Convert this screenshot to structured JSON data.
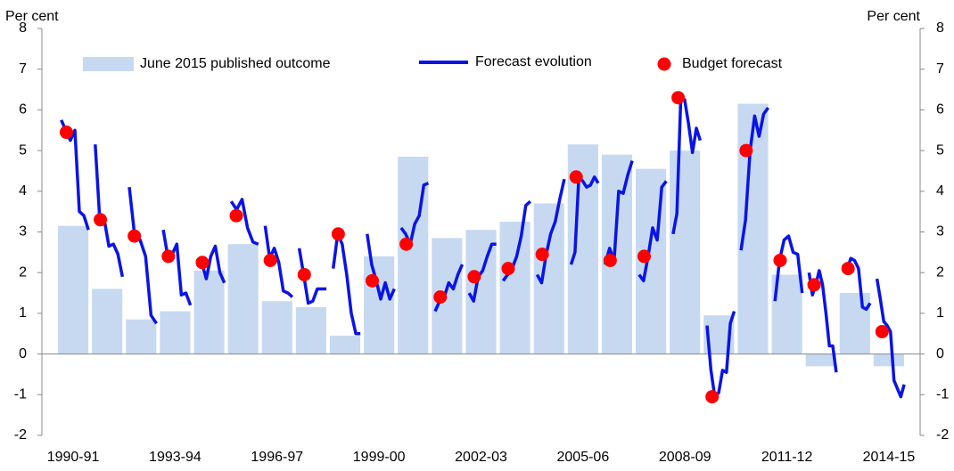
{
  "chart_data": {
    "type": "bar",
    "y_label": "Per cent",
    "y2_label": "Per cent",
    "categories": [
      "1990-91",
      null,
      null,
      "1993-94",
      null,
      null,
      "1996-97",
      null,
      null,
      "1999-00",
      null,
      null,
      "2002-03",
      null,
      null,
      "2005-06",
      null,
      null,
      "2008-09",
      null,
      null,
      "2011-12",
      null,
      null,
      "2014-15"
    ],
    "ylim": [
      -2,
      8
    ],
    "yticks": [
      -2,
      -1,
      0,
      1,
      2,
      3,
      4,
      5,
      6,
      7,
      8
    ],
    "y2lim": [
      -2,
      8
    ],
    "y2ticks": [
      -2,
      -1,
      0,
      1,
      2,
      3,
      4,
      5,
      6,
      7,
      8
    ],
    "series": [
      {
        "name": "June 2015 published outcome",
        "type": "bar",
        "color": "#c6d9f1",
        "values": [
          3.15,
          1.6,
          0.85,
          1.05,
          2.05,
          2.7,
          1.3,
          1.15,
          0.45,
          2.4,
          4.85,
          2.85,
          3.05,
          3.25,
          3.7,
          5.15,
          4.9,
          4.55,
          5.0,
          0.95,
          6.15,
          1.95,
          -0.3,
          1.5,
          -0.3
        ]
      },
      {
        "name": "Forecast evolution",
        "type": "line",
        "color": "#0a14e6",
        "values": [
          [
            5.75,
            5.5,
            5.25,
            5.5,
            3.5,
            3.4,
            3.05
          ],
          [
            5.15,
            3.3,
            3.3,
            2.65,
            2.7,
            2.45,
            1.9
          ],
          [
            4.1,
            2.9,
            2.8,
            2.4,
            0.95,
            0.75
          ],
          [
            3.05,
            2.4,
            2.45,
            2.7,
            1.45,
            1.5,
            1.2
          ],
          [
            2.35,
            2.25,
            1.85,
            2.4,
            2.65,
            2.0,
            1.75
          ],
          [
            3.75,
            3.55,
            3.8,
            3.1,
            2.75,
            2.7
          ],
          [
            3.15,
            2.35,
            2.6,
            2.25,
            1.55,
            1.5,
            1.4
          ],
          [
            2.6,
            1.95,
            1.25,
            1.3,
            1.6,
            1.6,
            1.6
          ],
          [
            2.1,
            2.95,
            2.7,
            1.95,
            1.0,
            0.5,
            0.5
          ],
          [
            2.95,
            2.2,
            1.8,
            1.35,
            1.75,
            1.35,
            1.6
          ],
          [
            3.1,
            2.95,
            2.7,
            3.2,
            3.4,
            4.15,
            4.2
          ],
          [
            1.05,
            1.3,
            1.4,
            1.75,
            1.6,
            1.95,
            2.2
          ],
          [
            1.5,
            1.3,
            1.9,
            2.05,
            2.4,
            2.7,
            2.7
          ],
          [
            1.8,
            1.95,
            2.1,
            2.4,
            2.9,
            3.65,
            3.75
          ],
          [
            1.95,
            1.75,
            2.45,
            2.95,
            3.25,
            3.8,
            4.3
          ],
          [
            2.2,
            2.5,
            4.35,
            4.25,
            4.1,
            4.15,
            4.35,
            4.2
          ],
          [
            2.2,
            2.6,
            2.3,
            4.0,
            3.95,
            4.4,
            4.75
          ],
          [
            1.95,
            1.8,
            2.4,
            3.1,
            2.8,
            4.1,
            4.25
          ],
          [
            2.95,
            3.45,
            6.3,
            6.25,
            5.65,
            4.95,
            5.55,
            5.25
          ],
          [
            0.7,
            -0.4,
            -1.05,
            -0.95,
            -0.4,
            -0.45,
            0.75,
            1.05
          ],
          [
            2.55,
            3.3,
            5.0,
            5.85,
            5.35,
            5.9,
            6.05
          ],
          [
            1.3,
            2.3,
            2.8,
            2.9,
            2.5,
            2.45,
            1.5
          ],
          [
            2.0,
            1.45,
            1.7,
            2.05,
            1.7,
            1.0,
            0.2,
            0.2,
            -0.45
          ],
          [
            2.2,
            2.05,
            2.35,
            2.3,
            2.1,
            1.15,
            1.1,
            1.25
          ],
          [
            1.85,
            1.35,
            0.8,
            0.7,
            0.55,
            -0.65,
            -0.85,
            -1.05,
            -0.75
          ]
        ]
      },
      {
        "name": "Budget forecast",
        "type": "scatter",
        "color": "#ff0000",
        "values": [
          5.45,
          3.3,
          2.9,
          2.4,
          2.25,
          3.4,
          2.3,
          1.95,
          2.95,
          1.8,
          2.7,
          1.4,
          1.9,
          2.1,
          2.45,
          4.35,
          2.3,
          2.4,
          6.3,
          -1.05,
          5.0,
          2.3,
          1.7,
          2.1,
          0.55
        ]
      }
    ]
  }
}
